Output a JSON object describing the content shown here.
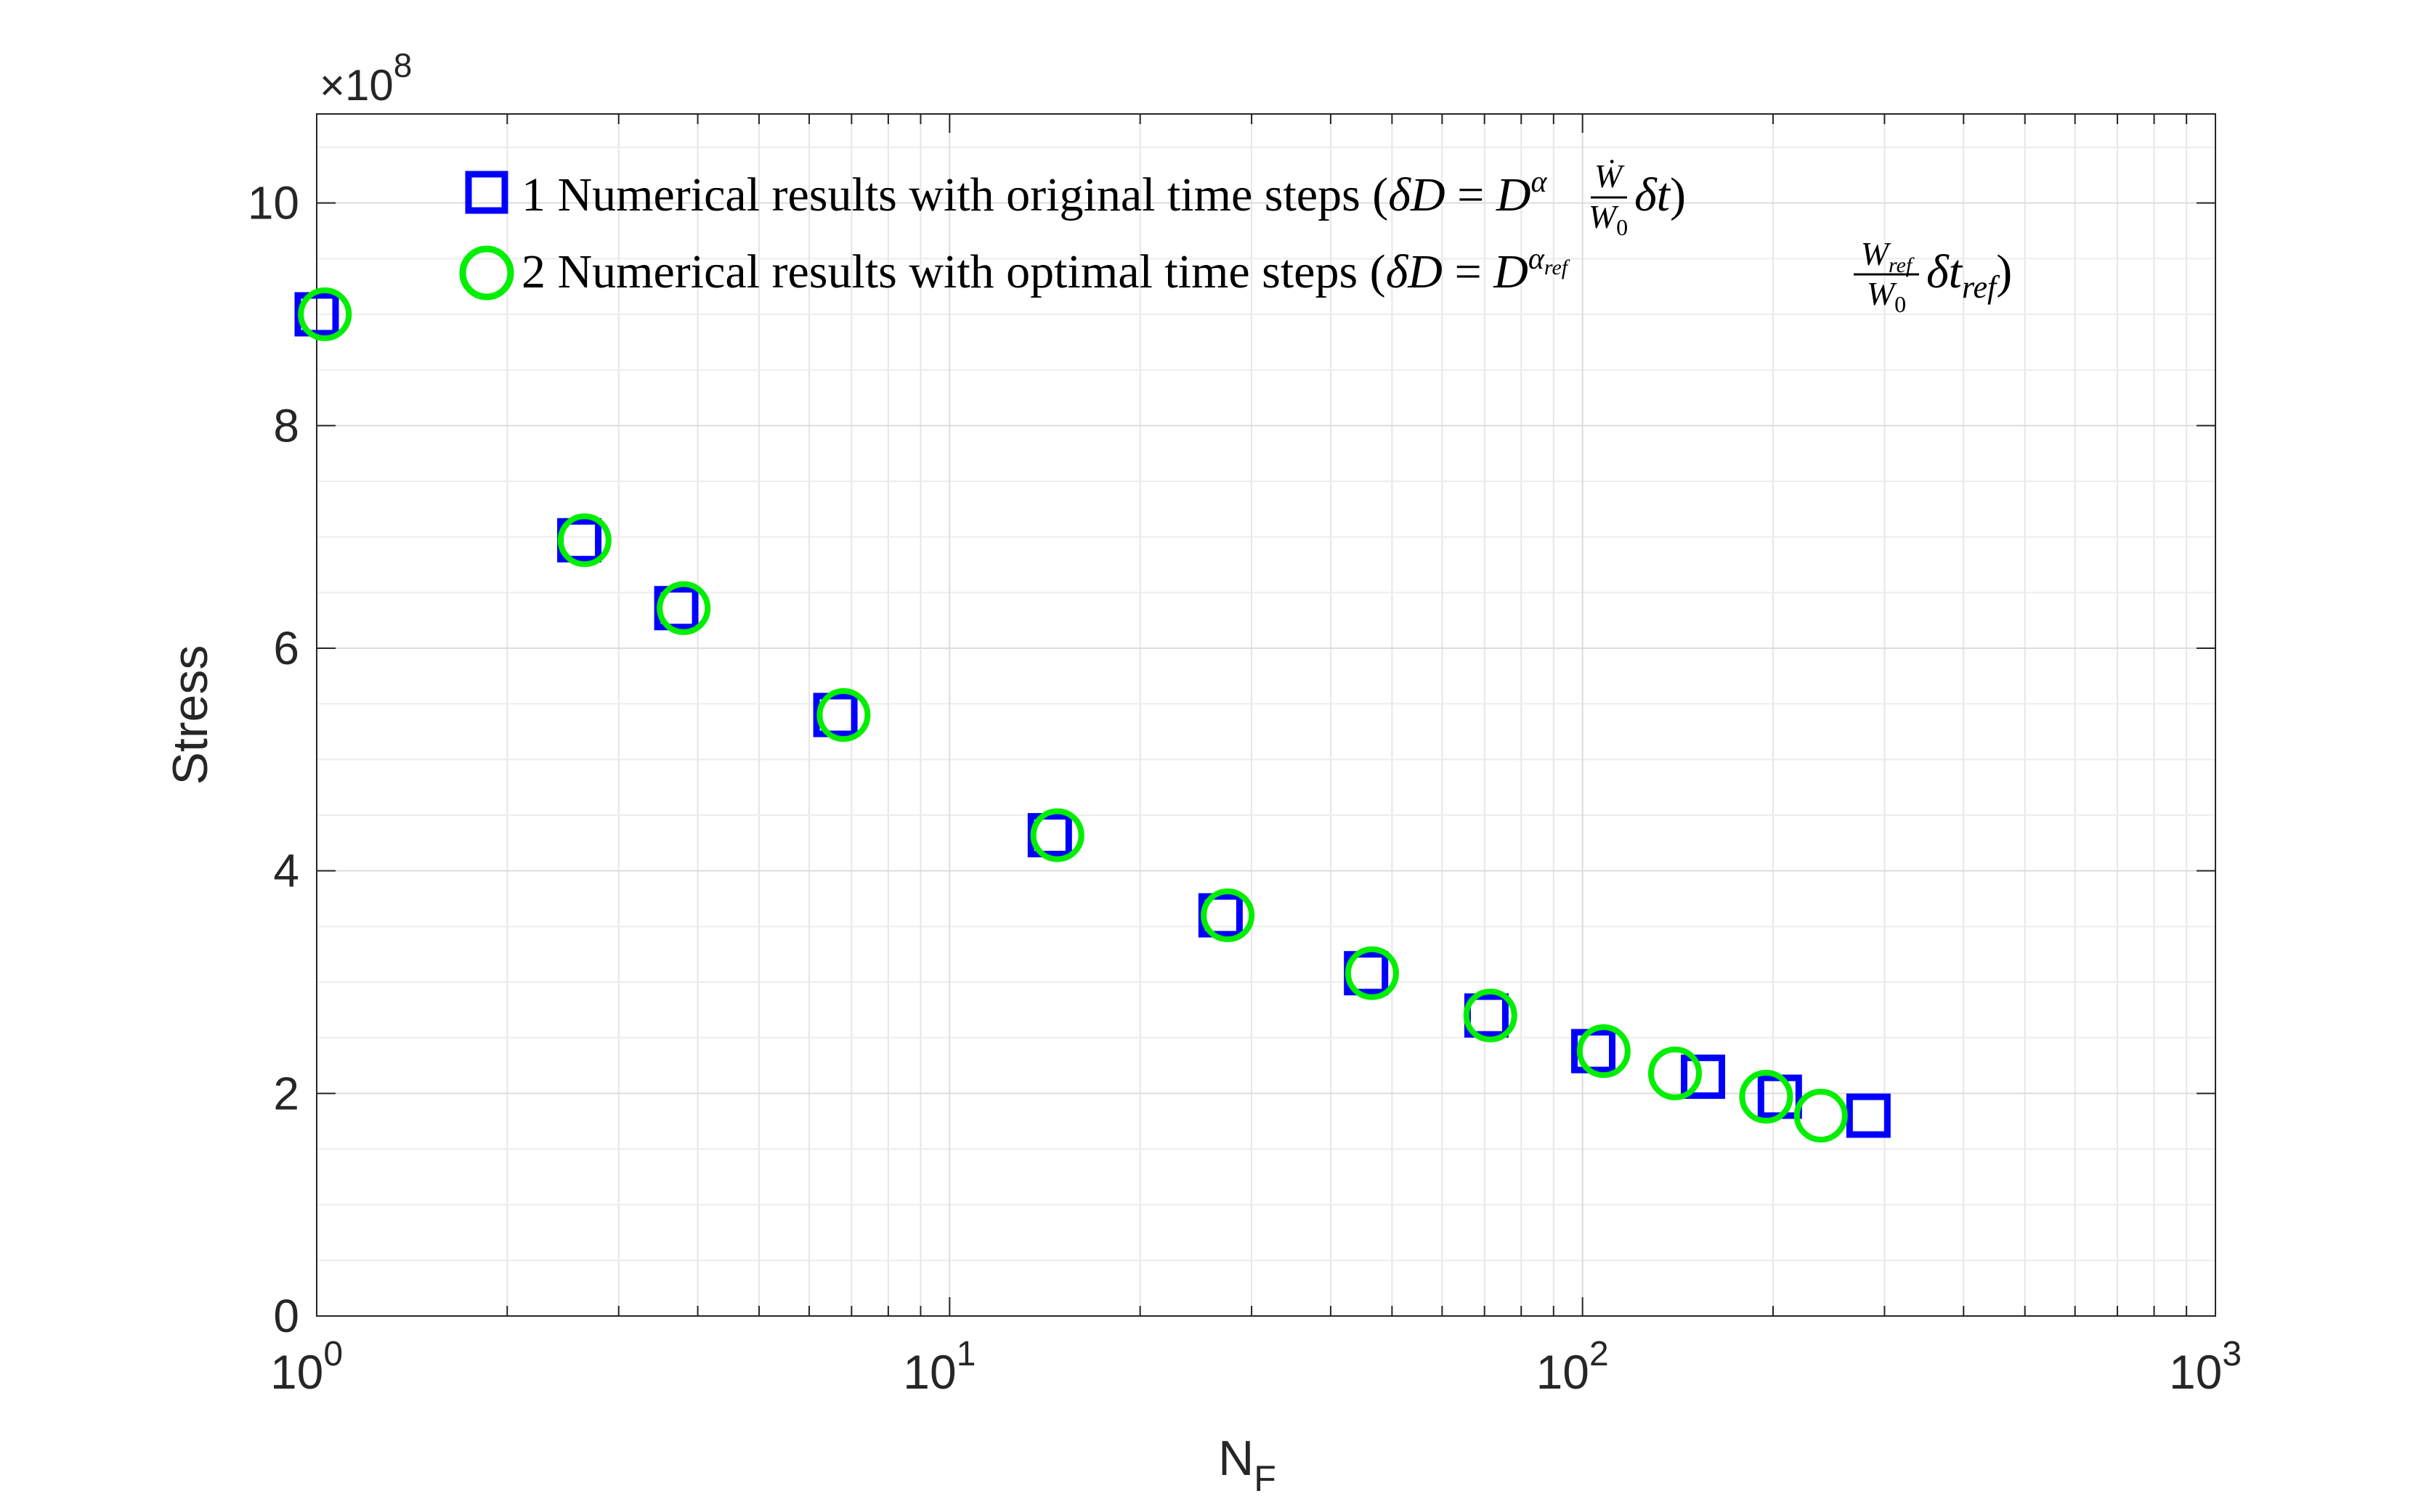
{
  "chart_data": {
    "type": "scatter",
    "title": "",
    "xlabel": "N",
    "xlabel_subscript": "F",
    "ylabel": "Stress",
    "xscale": "log",
    "xlim": [
      1,
      1000
    ],
    "ylim": [
      0,
      1080000000.0
    ],
    "y_exponent_label": "10",
    "y_exponent_power": "8",
    "x_ticks": [
      {
        "base": "10",
        "power": "0",
        "value": 1
      },
      {
        "base": "10",
        "power": "1",
        "value": 10
      },
      {
        "base": "10",
        "power": "2",
        "value": 100
      },
      {
        "base": "10",
        "power": "3",
        "value": 1000
      }
    ],
    "y_ticks": [
      {
        "label": "0",
        "value": 0
      },
      {
        "label": "2",
        "value": 200000000
      },
      {
        "label": "4",
        "value": 400000000
      },
      {
        "label": "6",
        "value": 600000000
      },
      {
        "label": "8",
        "value": 800000000
      },
      {
        "label": "10",
        "value": 1000000000
      }
    ],
    "grid": true,
    "legend_position": "top",
    "series": [
      {
        "name": "1 Numerical results with original time steps",
        "marker": "square",
        "color": "#0000ff",
        "points": [
          {
            "x": 1.0,
            "y": 900000000
          },
          {
            "x": 2.6,
            "y": 697000000
          },
          {
            "x": 3.7,
            "y": 636000000
          },
          {
            "x": 6.6,
            "y": 540000000
          },
          {
            "x": 14.4,
            "y": 432000000
          },
          {
            "x": 26.8,
            "y": 360000000
          },
          {
            "x": 45.5,
            "y": 308000000
          },
          {
            "x": 70.5,
            "y": 270000000
          },
          {
            "x": 104,
            "y": 238000000
          },
          {
            "x": 155,
            "y": 215000000
          },
          {
            "x": 205,
            "y": 197000000
          },
          {
            "x": 283,
            "y": 180000000
          }
        ]
      },
      {
        "name": "2 Numerical results with optimal time steps",
        "marker": "circle",
        "color": "#00ee00",
        "points": [
          {
            "x": 1.03,
            "y": 900000000
          },
          {
            "x": 2.65,
            "y": 697000000
          },
          {
            "x": 3.8,
            "y": 636000000
          },
          {
            "x": 6.8,
            "y": 540000000
          },
          {
            "x": 14.8,
            "y": 432000000
          },
          {
            "x": 27.5,
            "y": 360000000
          },
          {
            "x": 46.5,
            "y": 308000000
          },
          {
            "x": 71.5,
            "y": 270000000
          },
          {
            "x": 108,
            "y": 238000000
          },
          {
            "x": 140,
            "y": 218000000
          },
          {
            "x": 195,
            "y": 197000000
          },
          {
            "x": 238,
            "y": 180000000
          }
        ]
      }
    ]
  },
  "legend": {
    "items": [
      {
        "label": "1 Numerical results with original time steps",
        "formula": "(δD = D^α (Ẇ/W₀) δt)"
      },
      {
        "label": "2 Numerical results with optimal time steps",
        "formula": "(δD = D^{α_ref} (W_ref/W₀) δt_ref)"
      }
    ]
  }
}
